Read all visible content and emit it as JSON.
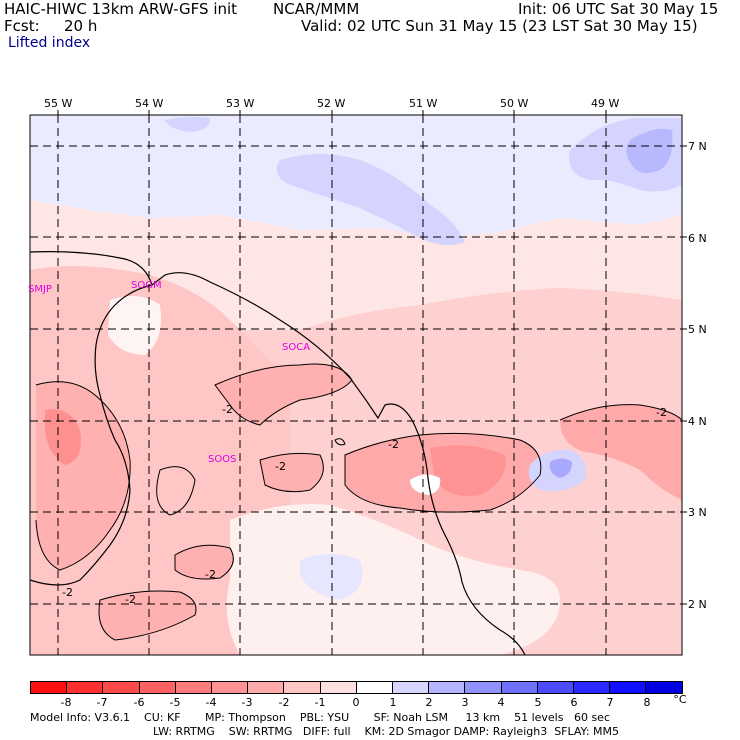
{
  "header": {
    "model_title": "HAIC-HIWC 13km ARW-GFS init",
    "org": "NCAR/MMM",
    "init": "Init: 06 UTC Sat 30 May 15",
    "fcst_label": "Fcst:",
    "fcst_value": "20 h",
    "valid": "Valid: 02 UTC Sun 31 May 15 (23 LST Sat 30 May 15)",
    "field": "Lifted index"
  },
  "longitudes": [
    "55 W",
    "54 W",
    "53 W",
    "52 W",
    "51 W",
    "50 W",
    "49 W"
  ],
  "latitudes": [
    "7 N",
    "6 N",
    "5 N",
    "4 N",
    "3 N",
    "2 N"
  ],
  "stations": [
    "SMJP",
    "SOGM",
    "SOCA",
    "SOOS"
  ],
  "contour_labels": [
    "-2",
    "-2",
    "-2",
    "-2",
    "-2",
    "-2",
    "-2"
  ],
  "colorbar": {
    "labels": [
      "-8",
      "-7",
      "-6",
      "-5",
      "-4",
      "-3",
      "-2",
      "-1",
      "0",
      "1",
      "2",
      "3",
      "4",
      "5",
      "6",
      "7",
      "8"
    ],
    "unit": "°C",
    "colors": [
      "#ff1010",
      "#ff3030",
      "#ff4a4a",
      "#ff6262",
      "#ff7a7a",
      "#ff9292",
      "#ffaaaa",
      "#ffc6c6",
      "#ffe0e0",
      "#ffffff",
      "#d6d6ff",
      "#b4b4ff",
      "#9292ff",
      "#7070ff",
      "#4c4cff",
      "#2a2aff",
      "#1010ff",
      "#0000e0"
    ]
  },
  "footer": {
    "line1": "Model Info: V3.6.1    CU: KF       MP: Thompson    PBL: YSU       SF: Noah LSM     13 km    51 levels   60 sec",
    "line2": "LW: RRTMG    SW: RRTMG   DIFF: full    KM: 2D Smagor DAMP: Rayleigh3  SFLAY: MM5"
  }
}
